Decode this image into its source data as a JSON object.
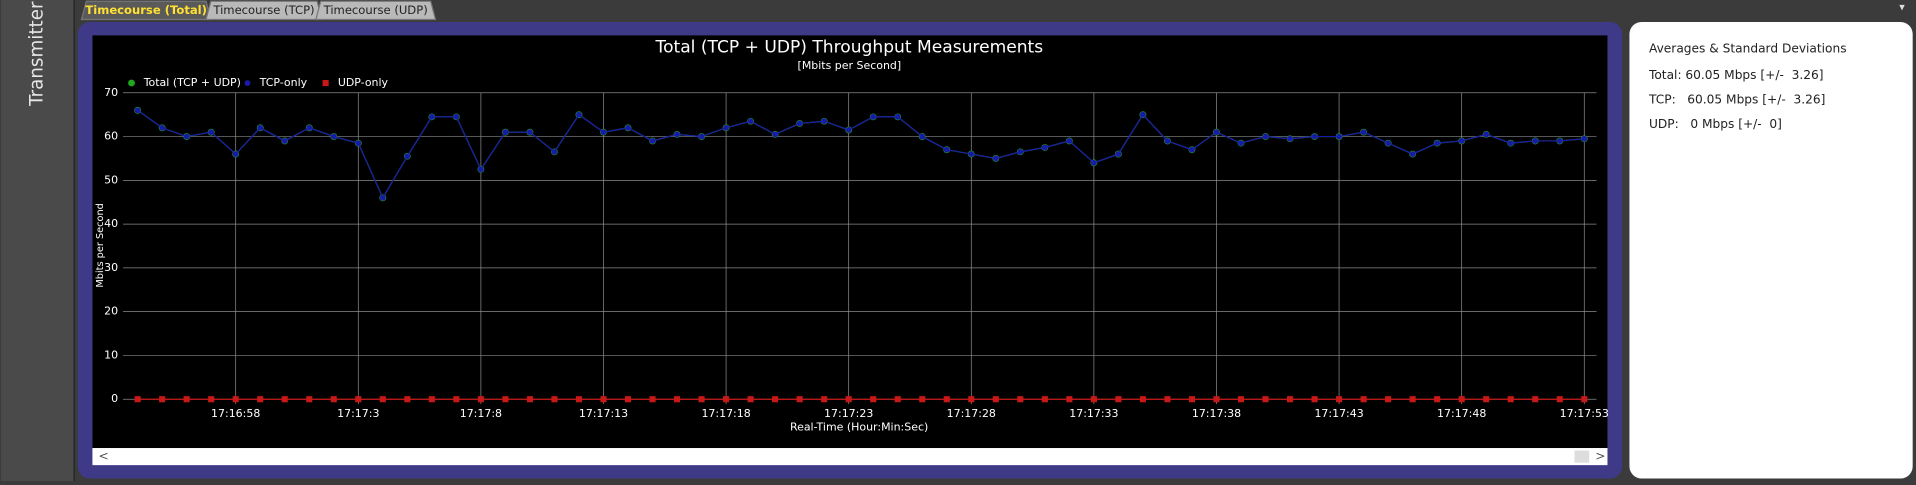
{
  "sidebar_label": "Transmitter",
  "tabs": [
    "Timecourse (Total)",
    "Timecourse (TCP)",
    "Timecourse (UDP)"
  ],
  "stats": {
    "title": "Averages & Standard Deviations",
    "lines": [
      "Total: 60.05 Mbps [+/-  3.26]",
      "TCP:   60.05 Mbps [+/-  3.26]",
      "UDP:   0 Mbps [+/-  0]"
    ]
  },
  "chart_data": {
    "type": "line",
    "title": "Total (TCP + UDP) Throughput Measurements",
    "subtitle": "[Mbits per Second]",
    "x_label": "Real-Time (Hour:Min:Sec)",
    "y_label": "Mbits per Second",
    "categories": [
      null,
      null,
      null,
      null,
      "17:16:58",
      null,
      null,
      null,
      null,
      "17:17:3",
      null,
      null,
      null,
      null,
      "17:17:8",
      null,
      null,
      null,
      null,
      "17:17:13",
      null,
      null,
      null,
      null,
      "17:17:18",
      null,
      null,
      null,
      null,
      "17:17:23",
      null,
      null,
      null,
      null,
      "17:17:28",
      null,
      null,
      null,
      null,
      "17:17:33",
      null,
      null,
      null,
      null,
      "17:17:38",
      null,
      null,
      null,
      null,
      "17:17:43",
      null,
      null,
      null,
      null,
      "17:17:48",
      null,
      null,
      null,
      null,
      "17:17:53"
    ],
    "series": [
      {
        "name": "Total (TCP + UDP)",
        "color": "#1fa81f",
        "values": [
          66,
          62,
          60,
          61,
          56,
          62,
          59,
          62,
          60,
          58.5,
          46,
          55.5,
          64.5,
          64.5,
          52.5,
          61,
          61,
          56.5,
          65,
          61,
          62,
          59,
          60.5,
          60,
          62,
          63.5,
          60.5,
          63,
          63.5,
          61.5,
          64.5,
          64.5,
          60,
          57,
          56,
          55,
          56.5,
          57.5,
          59,
          54,
          56,
          65,
          59,
          57,
          61,
          58.5,
          60,
          59.5,
          60,
          60,
          61,
          58.5,
          56,
          58.5,
          59,
          60.5,
          58.5,
          59,
          59,
          59.5
        ]
      },
      {
        "name": "TCP-only",
        "color": "#1a1aa8",
        "values": [
          66,
          62,
          60,
          61,
          56,
          62,
          59,
          62,
          60,
          58.5,
          46,
          55.5,
          64.5,
          64.5,
          52.5,
          61,
          61,
          56.5,
          65,
          61,
          62,
          59,
          60.5,
          60,
          62,
          63.5,
          60.5,
          63,
          63.5,
          61.5,
          64.5,
          64.5,
          60,
          57,
          56,
          55,
          56.5,
          57.5,
          59,
          54,
          56,
          65,
          59,
          57,
          61,
          58.5,
          60,
          59.5,
          60,
          60,
          61,
          58.5,
          56,
          58.5,
          59,
          60.5,
          58.5,
          59,
          59,
          59.5
        ]
      },
      {
        "name": "UDP-only",
        "color": "#c81818",
        "values": [
          0,
          0,
          0,
          0,
          0,
          0,
          0,
          0,
          0,
          0,
          0,
          0,
          0,
          0,
          0,
          0,
          0,
          0,
          0,
          0,
          0,
          0,
          0,
          0,
          0,
          0,
          0,
          0,
          0,
          0,
          0,
          0,
          0,
          0,
          0,
          0,
          0,
          0,
          0,
          0,
          0,
          0,
          0,
          0,
          0,
          0,
          0,
          0,
          0,
          0,
          0,
          0,
          0,
          0,
          0,
          0,
          0,
          0,
          0,
          0
        ]
      }
    ],
    "ylim": [
      0,
      70
    ],
    "yticks": [
      0,
      10,
      20,
      30,
      40,
      50,
      60,
      70
    ],
    "grid": true
  }
}
